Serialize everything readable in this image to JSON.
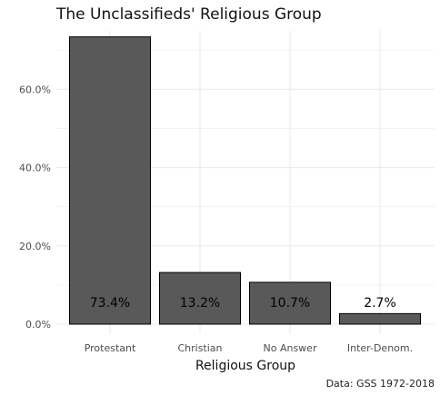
{
  "chart_data": {
    "type": "bar",
    "title": "The Unclassifieds' Religious Group",
    "xlabel": "Religious Group",
    "ylabel": "",
    "caption": "Data: GSS 1972-2018",
    "categories": [
      "Protestant",
      "Christian",
      "No Answer",
      "Inter-Denom."
    ],
    "values": [
      73.4,
      13.2,
      10.7,
      2.7
    ],
    "value_labels": [
      "73.4%",
      "13.2%",
      "10.7%",
      "2.7%"
    ],
    "y_ticks": [
      0,
      20,
      40,
      60
    ],
    "y_tick_labels": [
      "0.0%",
      "20.0%",
      "40.0%",
      "60.0%"
    ],
    "ylim": [
      0,
      75
    ],
    "grid": true,
    "legend": "none",
    "colors": {
      "bar_fill": "#595959",
      "bar_stroke": "#000000",
      "grid": "#ebebeb",
      "label_on_bar": "#000000"
    }
  }
}
